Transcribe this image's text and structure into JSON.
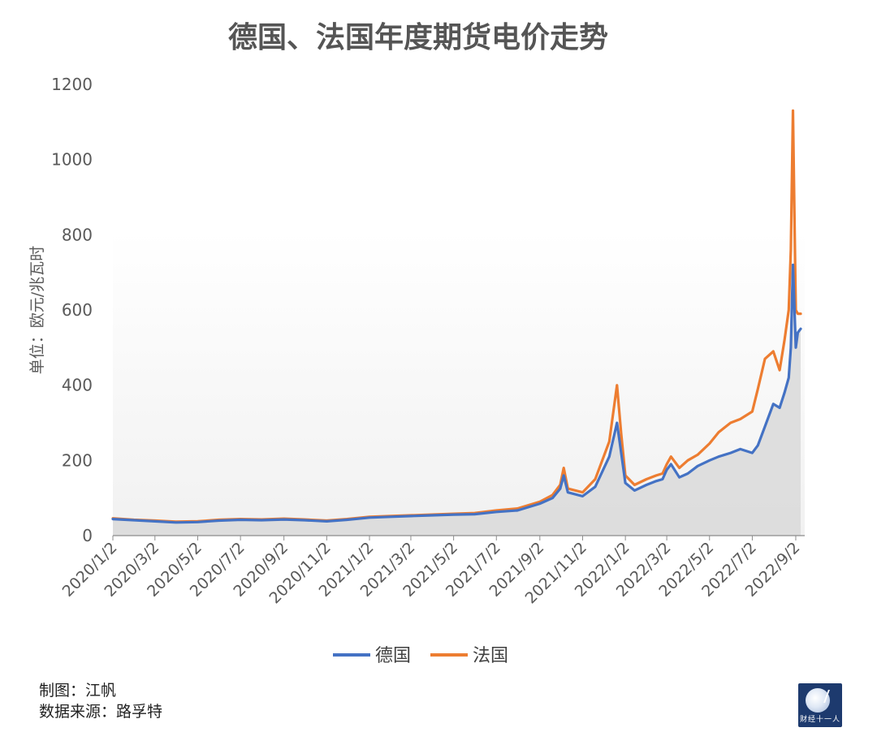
{
  "chart_data": {
    "type": "line",
    "title": "德国、法国年度期货电价走势",
    "ylabel": "单位：欧元/兆瓦时",
    "xlabel": "",
    "ylim": [
      0,
      1200
    ],
    "yticks": [
      0,
      200,
      400,
      600,
      800,
      1000,
      1200
    ],
    "xticks": [
      "2020/1/2",
      "2020/3/2",
      "2020/5/2",
      "2020/7/2",
      "2020/9/2",
      "2020/11/2",
      "2021/1/2",
      "2021/3/2",
      "2021/5/2",
      "2021/7/2",
      "2021/9/2",
      "2021/11/2",
      "2022/1/2",
      "2022/3/2",
      "2022/5/2",
      "2022/7/2",
      "2022/9/2"
    ],
    "x_range": [
      "2020/1/2",
      "2022/9/9"
    ],
    "legend_position": "bottom",
    "x": [
      "2020/1/2",
      "2020/2/1",
      "2020/3/2",
      "2020/4/1",
      "2020/5/2",
      "2020/6/1",
      "2020/7/2",
      "2020/8/1",
      "2020/9/2",
      "2020/10/1",
      "2020/11/2",
      "2020/12/1",
      "2021/1/2",
      "2021/2/1",
      "2021/3/2",
      "2021/4/1",
      "2021/5/2",
      "2021/6/1",
      "2021/7/2",
      "2021/8/1",
      "2021/9/2",
      "2021/9/20",
      "2021/10/1",
      "2021/10/6",
      "2021/10/12",
      "2021/11/2",
      "2021/11/20",
      "2021/12/10",
      "2021/12/21",
      "2021/12/27",
      "2022/1/2",
      "2022/1/15",
      "2022/2/1",
      "2022/2/15",
      "2022/2/24",
      "2022/3/2",
      "2022/3/8",
      "2022/3/20",
      "2022/4/1",
      "2022/4/15",
      "2022/5/2",
      "2022/5/15",
      "2022/6/1",
      "2022/6/15",
      "2022/7/2",
      "2022/7/10",
      "2022/7/20",
      "2022/8/1",
      "2022/8/10",
      "2022/8/17",
      "2022/8/23",
      "2022/8/26",
      "2022/8/29",
      "2022/9/2",
      "2022/9/5",
      "2022/9/9"
    ],
    "series": [
      {
        "name": "德国",
        "color": "#4472C4",
        "values": [
          44,
          41,
          38,
          35,
          36,
          40,
          42,
          41,
          43,
          41,
          38,
          42,
          48,
          50,
          52,
          54,
          56,
          57,
          63,
          67,
          85,
          100,
          125,
          160,
          115,
          105,
          130,
          210,
          300,
          220,
          140,
          120,
          135,
          145,
          150,
          175,
          190,
          155,
          165,
          185,
          200,
          210,
          220,
          230,
          220,
          240,
          290,
          350,
          340,
          380,
          420,
          500,
          720,
          500,
          540,
          550
        ]
      },
      {
        "name": "法国",
        "color": "#ED7D31",
        "values": [
          46,
          42,
          40,
          37,
          38,
          42,
          44,
          43,
          45,
          43,
          40,
          44,
          50,
          52,
          54,
          56,
          58,
          60,
          67,
          72,
          90,
          108,
          135,
          180,
          125,
          115,
          150,
          250,
          400,
          270,
          160,
          135,
          150,
          160,
          165,
          190,
          210,
          180,
          200,
          215,
          245,
          275,
          300,
          310,
          330,
          390,
          470,
          490,
          440,
          520,
          600,
          760,
          1130,
          600,
          590,
          590
        ]
      }
    ]
  }
}
